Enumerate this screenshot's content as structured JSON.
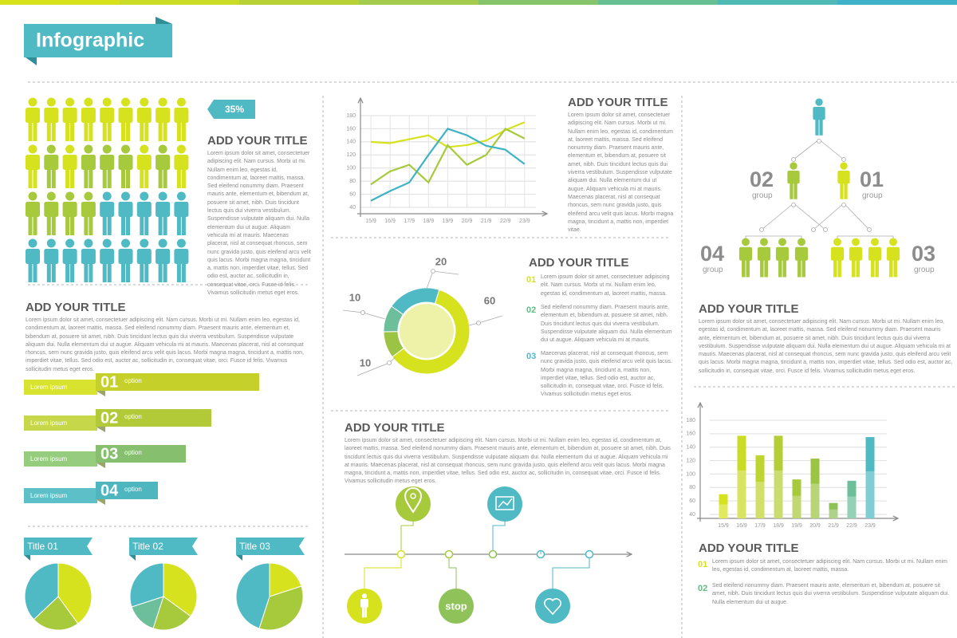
{
  "header": {
    "title": "Infographic"
  },
  "people_block": {
    "badge": "35%",
    "title": "ADD YOUR TITLE",
    "text": "Lorem ipsum dolor sit amet, consectetuer adipiscing elit. Nam cursus. Morbi ut mi. Nullam enim leo, egestas id, condimentum at, laoreet mattis, massa. Sed eleifend nonummy diam. Praesent mauris ante, elementum et, bibendum at, posuere sit amet, nibh. Duis tincidunt lectus quis dui viverra vestibulum. Suspendisse vulputate aliquam dui. Nulla elementum dui ut augue. Aliquam vehicula mi at mauris. Maecenas placerat, nisl at consequat rhoncus, sem nunc gravida justo, quis eleifend arcu velit quis lacus. Morbi magna magna, tincidunt a, mattis non, imperdiet vitae, tellus. Sed odio est, auctor ac, sollicitudin in, consequat vitae, orci. Fusce id felis. Vivamus sollicitudin metus eget eros."
  },
  "left_block": {
    "title": "ADD YOUR TITLE",
    "text": "Lorem ipsum dolor sit amet, consectetuer adipiscing elit. Nam cursus. Morbi ut mi. Nullam enim leo, egestas id, condimentum at, laoreet mattis, massa. Sed eleifend nonummy diam. Praesent mauris ante, elementum et, bibendum at, posuere sit amet, nibh. Duis tincidunt lectus quis dui viverra vestibulum. Suspendisse vulputate aliquam dui. Nulla elementum dui ut augue. Aliquam vehicula mi at mauris. Maecenas placerat, nisl at consequat rhoncus, sem nunc gravida justo, quis eleifend arcu velit quis lacus. Morbi magna magna, tincidunt a, mattis non, imperdiet vitae, tellus. Sed odio est, auctor ac, sollicitudin in, consequat vitae, orci. Fusce id felis. Vivamus sollicitudin metus eget eros."
  },
  "options": [
    {
      "number": "01",
      "label": "option",
      "text": "Lorem ipsum"
    },
    {
      "number": "02",
      "label": "option",
      "text": "Lorem ipsum"
    },
    {
      "number": "03",
      "label": "option",
      "text": "Lorem ipsum"
    },
    {
      "number": "04",
      "label": "option",
      "text": "Lorem ipsum"
    }
  ],
  "line_block": {
    "title": "ADD YOUR TITLE",
    "text": "Lorem ipsum dolor sit amet, consectetuer adipiscing elit. Nam cursus. Morbi ut mi. Nullam enim leo, egestas id, condimentum at, laoreet mattis, massa. Sed eleifend nonummy diam. Praesent mauris ante, elementum et, bibendum at, posuere sit amet, nibh. Duis tincidunt lectus quis dui viverra vestibulum. Suspendisse vulputate aliquam dui. Nulla elementum dui ut augue. Aliquam vehicula mi at mauris. Maecenas placerat, nisl at consequat rhoncus, sem nunc gravida justo, quis eleifend arcu velit quis lacus. Morbi magna magna, tincidunt a, mattis non, imperdiet vitae."
  },
  "donut_block": {
    "title": "ADD YOUR TITLE",
    "items": [
      {
        "number": "01",
        "text": "Lorem ipsum dolor sit amet, consectetuer adipiscing elit. Nam cursus. Morbi ut mi. Nullam enim leo, egestas id, condimentum at, laoreet mattis, massa."
      },
      {
        "number": "02",
        "text": "Sed eleifend nonummy diam. Praesent mauris ante, elementum et, bibendum at, posuere sit amet, nibh. Duis tincidunt lectus quis dui viverra vestibulum. Suspendisse vulputate aliquam dui. Nulla elementum dui ut augue. Aliquam vehicula mi at mauris."
      },
      {
        "number": "03",
        "text": "Maecenas placerat, nisl at consequat rhoncus, sem nunc gravida justo, quis eleifend arcu velit quis lacus. Morbi magna magna, tincidunt a, mattis non, imperdiet vitae, tellus. Sed odio est, auctor ac, sollicitudin in, consequat vitae, orci. Fusce id felis. Vivamus sollicitudin metus eget eros."
      }
    ]
  },
  "timeline_block": {
    "title": "ADD YOUR TITLE",
    "text": "Lorem ipsum dolor sit amet, consectetuer adipiscing elit. Nam cursus. Morbi ut mi. Nullam enim leo, egestas id, condimentum at, laoreet mattis, massa. Sed eleifend nonummy diam. Praesent mauris ante, elementum et, bibendum at, posuere sit amet, nibh. Duis tincidunt lectus quis dui viverra vestibulum. Suspendisse vulputate aliquam dui. Nulla elementum dui ut augue. Aliquam vehicula mi at mauris. Maecenas placerat, nisl at consequat rhoncus, sem nunc gravida justo, quis eleifend arcu velit quis lacus. Morbi magna magna, tincidunt a, mattis non, imperdiet vitae, tellus. Sed odio est, auctor ac, sollicitudin in, consequat vitae, orci. Fusce id felis. Vivamus sollicitudin metus eget eros.",
    "stop": "stop"
  },
  "hierarchy": {
    "groups": [
      {
        "number": "02",
        "label": "group"
      },
      {
        "number": "01",
        "label": "group"
      },
      {
        "number": "04",
        "label": "group"
      },
      {
        "number": "03",
        "label": "group"
      }
    ]
  },
  "right_block": {
    "title": "ADD YOUR TITLE",
    "text": "Lorem ipsum dolor sit amet, consectetuer adipiscing elit. Nam cursus. Morbi ut mi. Nullam enim leo, egestas id, condimentum at, laoreet mattis, massa. Sed eleifend nonummy diam. Praesent mauris ante, elementum et, bibendum at, posuere sit amet, nibh. Duis tincidunt lectus quis dui viverra vestibulum. Suspendisse vulputate aliquam dui. Nulla elementum dui ut augue. Aliquam vehicula mi at mauris. Maecenas placerat, nisl at consequat rhoncus, sem nunc gravida justo, quis eleifend arcu velit quis lacus. Morbi magna magna, tincidunt a, mattis non, imperdiet vitae, tellus. Sed odio est, auctor ac, sollicitudin in, consequat vitae, orci. Fusce id felis. Vivamus sollicitudin metus eget eros."
  },
  "bar_block": {
    "title": "ADD YOUR TITLE",
    "items": [
      {
        "number": "01",
        "text": "Lorem ipsum dolor sit amet, consectetuer adipiscing elit. Nam cursus. Morbi ut mi. Nullam enim leo, egestas id, condimentum at, laoreet mattis, massa."
      },
      {
        "number": "02",
        "text": "Sed eleifend nonummy diam. Praesent mauris ante, elementum et, bibendum at, posuere sit amet, nibh. Duis tincidunt lectus quis dui viverra vestibulum. Suspendisse vulputate aliquam dui. Nulla elementum dui ut augue."
      }
    ]
  },
  "chart_data": [
    {
      "type": "line",
      "categories": [
        "15/9",
        "16/9",
        "17/9",
        "18/9",
        "19/9",
        "20/9",
        "21/9",
        "22/9",
        "23/9"
      ],
      "series": [
        {
          "color": "#d6e21e",
          "values": [
            140,
            138,
            144,
            150,
            132,
            135,
            142,
            158,
            170
          ]
        },
        {
          "color": "#a7c93c",
          "values": [
            75,
            95,
            105,
            78,
            135,
            105,
            120,
            160,
            145
          ]
        },
        {
          "color": "#3fb3c4",
          "values": [
            50,
            65,
            78,
            120,
            160,
            150,
            134,
            128,
            106
          ]
        }
      ],
      "ylim": [
        40,
        180
      ],
      "yticks": [
        40,
        60,
        80,
        100,
        120,
        140,
        160,
        180
      ],
      "grid": true
    },
    {
      "type": "donut",
      "values": [
        20,
        60,
        10,
        10
      ],
      "colors": [
        "#4fbac4",
        "#d6e21e",
        "#9cc444",
        "#6cbf9a"
      ]
    },
    {
      "type": "pie",
      "title": "Title 01",
      "values": [
        40,
        23,
        37
      ],
      "colors": [
        "#d6e21e",
        "#a7c93c",
        "#4fbac4"
      ]
    },
    {
      "type": "pie",
      "title": "Title 02",
      "values": [
        35,
        20,
        15,
        30
      ],
      "colors": [
        "#d6e21e",
        "#a7c93c",
        "#6cbf9a",
        "#4fbac4"
      ]
    },
    {
      "type": "pie",
      "title": "Title 03",
      "values": [
        20,
        35,
        45
      ],
      "colors": [
        "#d6e21e",
        "#a7c93c",
        "#4fbac4"
      ]
    },
    {
      "type": "bar",
      "categories": [
        "15/9",
        "16/9",
        "17/9",
        "18/9",
        "19/9",
        "20/9",
        "21/9",
        "22/9",
        "23/9"
      ],
      "values": [
        70,
        157,
        128,
        157,
        92,
        123,
        57,
        90,
        155
      ],
      "colors": [
        "#d6e21e",
        "#cbdc26",
        "#bfd430",
        "#b4cf36",
        "#a7c93c",
        "#9cc444",
        "#8fc35a",
        "#6cbf9a",
        "#4fbac4"
      ],
      "ylim": [
        40,
        180
      ],
      "yticks": [
        40,
        60,
        80,
        100,
        120,
        140,
        160,
        180
      ],
      "grid": true
    }
  ]
}
